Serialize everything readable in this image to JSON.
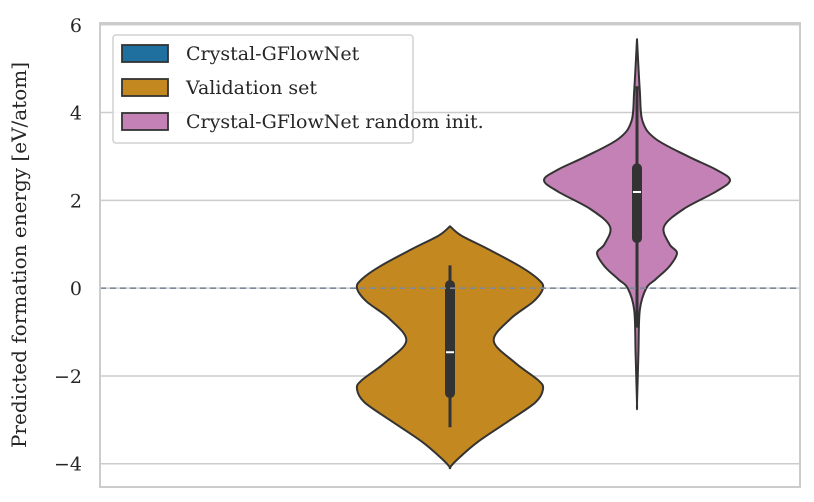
{
  "chart_data": {
    "type": "violin",
    "title": "",
    "xlabel": "",
    "ylabel": "Predicted formation energy [eV/atom]",
    "ylim": [
      -4.53,
      6.04
    ],
    "yticks": [
      6,
      4,
      2,
      0,
      -2,
      -4
    ],
    "ytick_labels": [
      "6",
      "4",
      "2",
      "0",
      "−2",
      "−4"
    ],
    "grid": "horizontal",
    "legend_position": "top-left",
    "reference_line": {
      "y": 0,
      "style": "dashed",
      "color": "#7b8a9c"
    },
    "series": [
      {
        "name": "Crystal-GFlowNet",
        "color": "#1f6f9f",
        "profile": [],
        "box": null
      },
      {
        "name": "Validation set",
        "color": "#c48820",
        "profile": [
          [
            1.41,
            0
          ],
          [
            1.2,
            0.12
          ],
          [
            0.9,
            0.4
          ],
          [
            0.5,
            0.75
          ],
          [
            0.2,
            0.95
          ],
          [
            0.0,
            1.0
          ],
          [
            -0.3,
            0.9
          ],
          [
            -0.7,
            0.65
          ],
          [
            -1.2,
            0.47
          ],
          [
            -1.7,
            0.7
          ],
          [
            -2.1,
            0.95
          ],
          [
            -2.3,
            1.0
          ],
          [
            -2.6,
            0.92
          ],
          [
            -3.0,
            0.65
          ],
          [
            -3.5,
            0.3
          ],
          [
            -3.9,
            0.08
          ],
          [
            -4.08,
            0
          ]
        ],
        "box": {
          "whisker_low": -3.17,
          "q1": -2.39,
          "median": -1.46,
          "q3": 0.07,
          "whisker_high": 0.52
        }
      },
      {
        "name": "Crystal-GFlowNet random init.",
        "color": "#c481b6",
        "profile": [
          [
            5.67,
            0
          ],
          [
            4.5,
            0.03
          ],
          [
            3.8,
            0.06
          ],
          [
            3.4,
            0.2
          ],
          [
            3.0,
            0.55
          ],
          [
            2.7,
            0.85
          ],
          [
            2.46,
            1.0
          ],
          [
            2.2,
            0.85
          ],
          [
            1.8,
            0.5
          ],
          [
            1.4,
            0.29
          ],
          [
            1.0,
            0.35
          ],
          [
            0.8,
            0.43
          ],
          [
            0.5,
            0.35
          ],
          [
            0.2,
            0.2
          ],
          [
            0.0,
            0.1
          ],
          [
            -0.5,
            0.03
          ],
          [
            -1.5,
            0.015
          ],
          [
            -2.62,
            0
          ]
        ],
        "box": {
          "whisker_low": -0.9,
          "q1": 1.14,
          "median": 2.19,
          "q3": 2.73,
          "whisker_high": 4.6
        }
      }
    ]
  }
}
